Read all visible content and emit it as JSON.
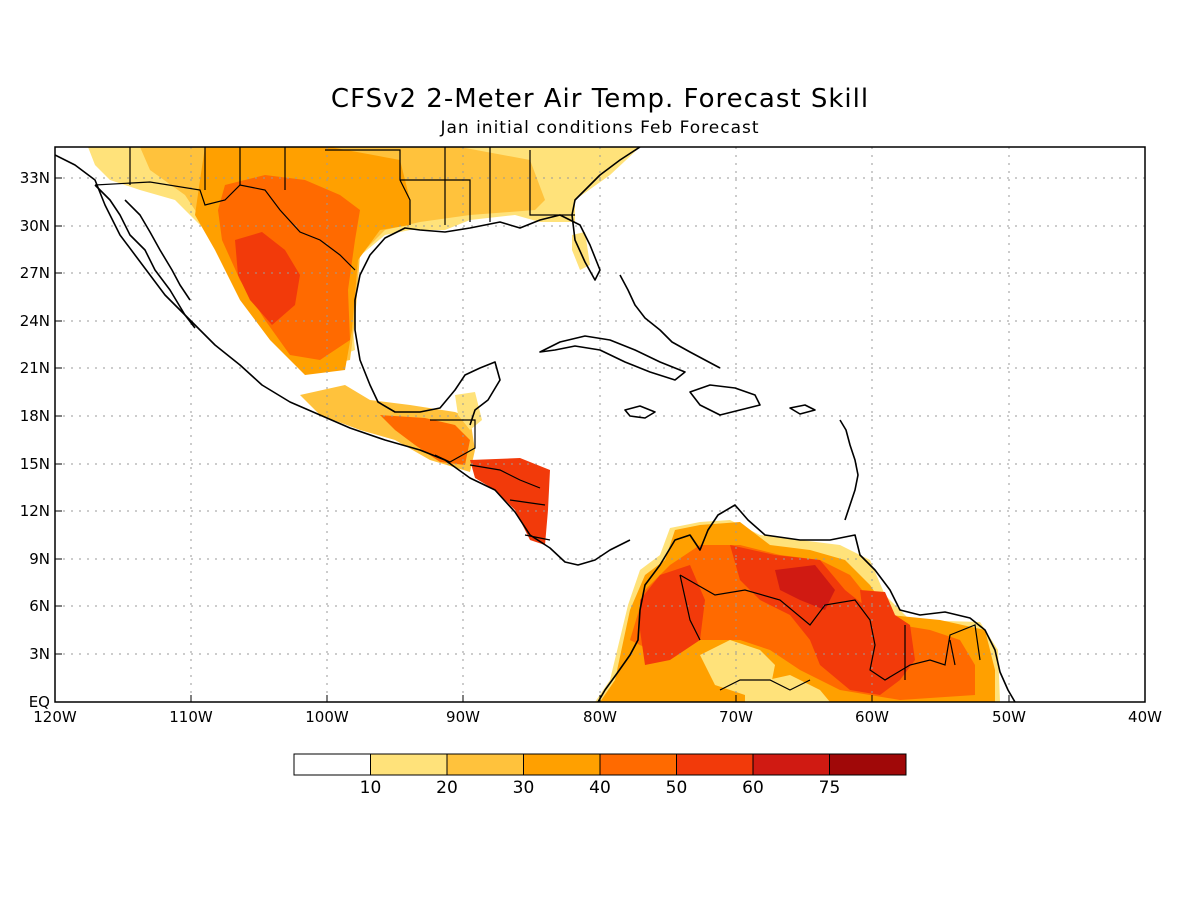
{
  "title": "CFSv2 2-Meter Air Temp. Forecast Skill",
  "subtitle": "Jan initial conditions  Feb Forecast",
  "axes": {
    "lat_labels": [
      "33N",
      "30N",
      "27N",
      "24N",
      "21N",
      "18N",
      "15N",
      "12N",
      "9N",
      "6N",
      "3N",
      "EQ"
    ],
    "lon_labels": [
      "120W",
      "110W",
      "100W",
      "90W",
      "80W",
      "70W",
      "60W",
      "50W",
      "40W"
    ],
    "grid": "dotted"
  },
  "colorbar": {
    "labels": [
      "10",
      "20",
      "30",
      "40",
      "50",
      "60",
      "75"
    ],
    "colors": [
      "#ffffff",
      "#ffe27a",
      "#ffc23c",
      "#ffa000",
      "#ff6a00",
      "#f23a0a",
      "#d01a12",
      "#a00808"
    ]
  },
  "map_elements": {
    "land_outline_color": "#000000",
    "grid_color": "#9a9a9a"
  }
}
